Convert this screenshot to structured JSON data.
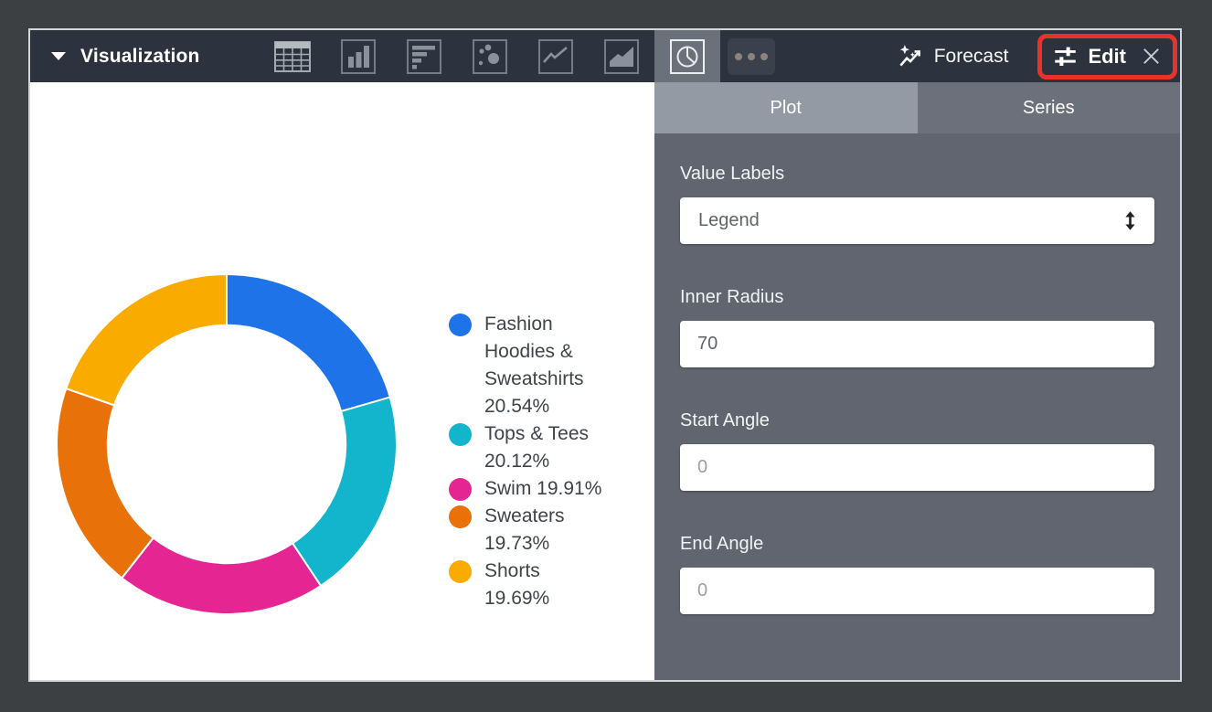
{
  "toolbar": {
    "title": "Visualization",
    "forecast_label": "Forecast",
    "edit_label": "Edit"
  },
  "panel": {
    "tab_plot": "Plot",
    "tab_series": "Series",
    "value_labels": {
      "label": "Value Labels",
      "value": "Legend"
    },
    "inner_radius": {
      "label": "Inner Radius",
      "value": "70"
    },
    "start_angle": {
      "label": "Start Angle",
      "placeholder": "0"
    },
    "end_angle": {
      "label": "End Angle",
      "placeholder": "0"
    }
  },
  "annotation": {
    "color": "#e7342b"
  },
  "chart_data": {
    "type": "pie",
    "title": "",
    "labels": [
      "Fashion Hoodies & Sweatshirts",
      "Tops & Tees",
      "Swim",
      "Sweaters",
      "Shorts"
    ],
    "values": [
      20.54,
      20.12,
      19.91,
      19.73,
      19.69
    ],
    "colors": [
      "#1E73E8",
      "#12B5CB",
      "#E52592",
      "#E8710A",
      "#F9AB00"
    ],
    "inner_radius_pct": 70,
    "start_angle": 0,
    "legend_position": "right",
    "legend_lines": [
      [
        "Fashion",
        "Hoodies &",
        "Sweatshirts",
        "20.54%"
      ],
      [
        "Tops & Tees",
        "20.12%"
      ],
      [
        "Swim 19.91%"
      ],
      [
        "Sweaters",
        "19.73%"
      ],
      [
        "Shorts 19.69%"
      ]
    ]
  }
}
